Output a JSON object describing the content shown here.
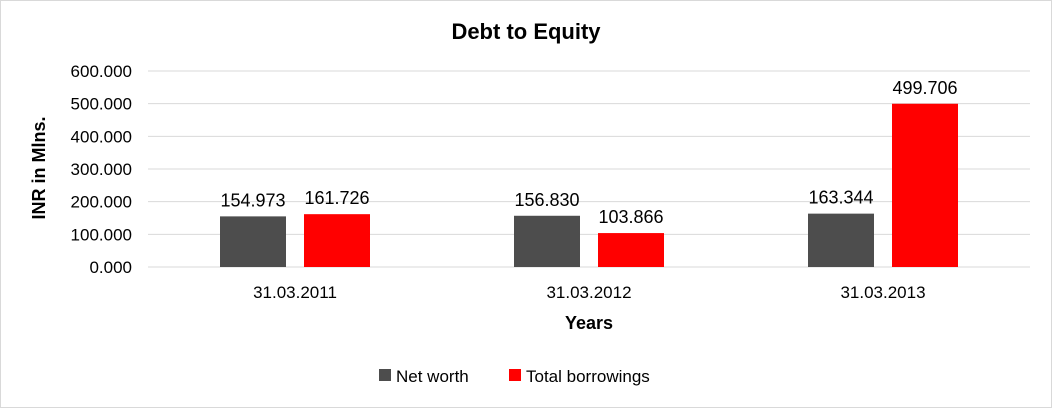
{
  "chart_data": {
    "type": "bar",
    "title": "Debt to Equity",
    "xlabel": "Years",
    "ylabel": "INR in Mlns.",
    "categories": [
      "31.03.2011",
      "31.03.2012",
      "31.03.2013"
    ],
    "series": [
      {
        "name": "Net worth",
        "values": [
          154.973,
          156.83,
          163.344
        ],
        "labels": [
          "154.973",
          "156.830",
          "163.344"
        ],
        "color": "#4d4d4d"
      },
      {
        "name": "Total borrowings",
        "values": [
          161.726,
          103.866,
          499.706
        ],
        "labels": [
          "161.726",
          "103.866",
          "499.706"
        ],
        "color": "#ff0000"
      }
    ],
    "ylim": [
      0,
      600
    ],
    "yticks": [
      "0.000",
      "100.000",
      "200.000",
      "300.000",
      "400.000",
      "500.000",
      "600.000"
    ],
    "grid": true,
    "legend_position": "bottom"
  }
}
